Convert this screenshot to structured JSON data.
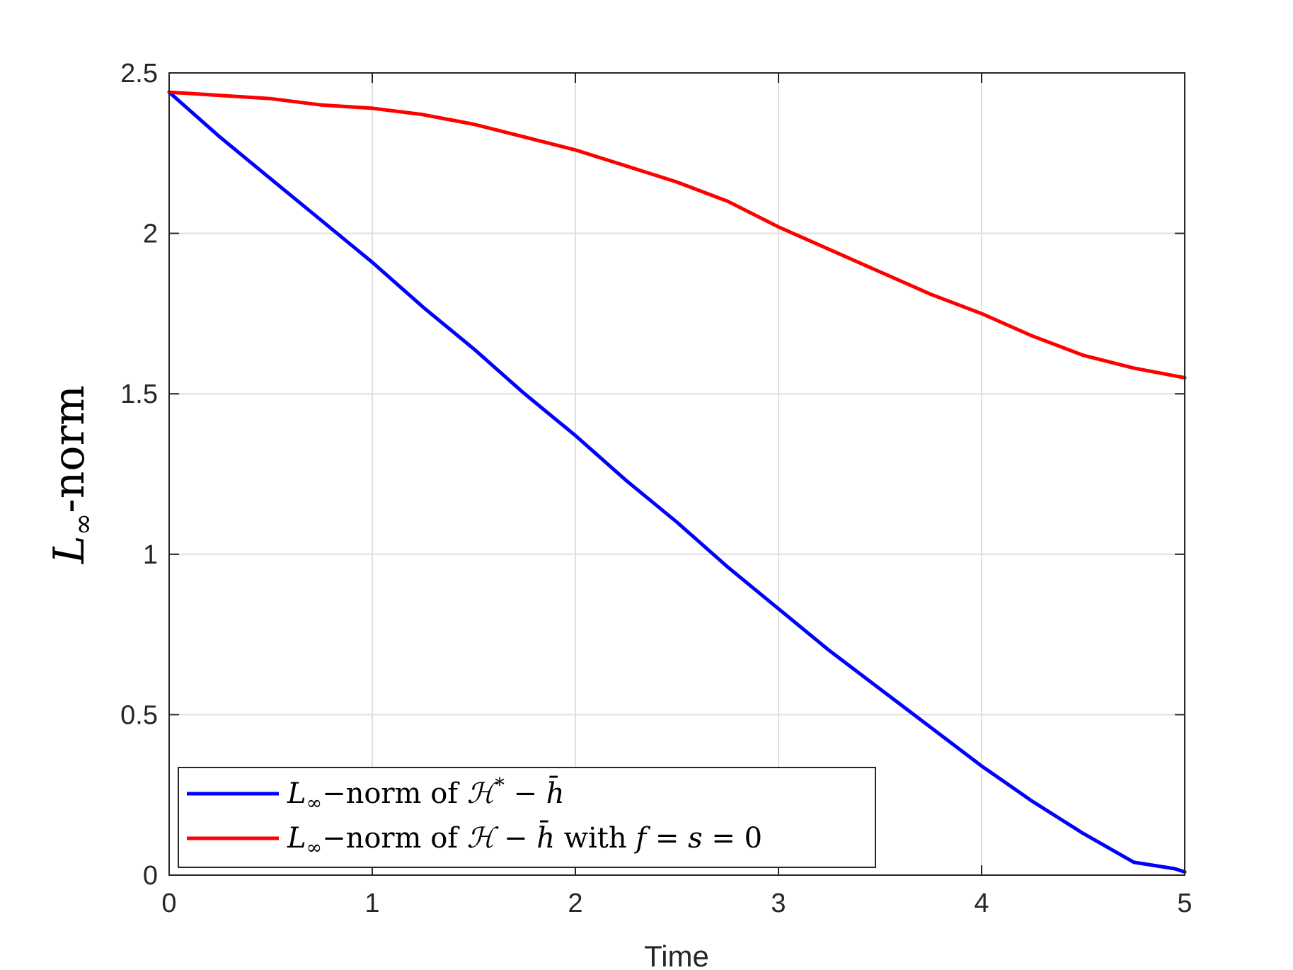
{
  "chart_data": {
    "type": "line",
    "xlabel": "Time",
    "ylabel": "L∞-norm",
    "xlim": [
      0,
      5
    ],
    "ylim": [
      0,
      2.5
    ],
    "xticks": [
      "0",
      "1",
      "2",
      "3",
      "4",
      "5"
    ],
    "yticks": [
      "0",
      "0.5",
      "1",
      "1.5",
      "2",
      "2.5"
    ],
    "grid": true,
    "legend_position": "bottom-left",
    "series": [
      {
        "name": "L∞−norm of ℋ* − h̄",
        "color": "#0000ff",
        "x": [
          0,
          0.25,
          0.5,
          0.75,
          1,
          1.25,
          1.5,
          1.75,
          2,
          2.25,
          2.5,
          2.75,
          3,
          3.25,
          3.5,
          3.75,
          4,
          4.25,
          4.5,
          4.75,
          4.95,
          5
        ],
        "y": [
          2.44,
          2.3,
          2.17,
          2.04,
          1.91,
          1.77,
          1.64,
          1.5,
          1.37,
          1.23,
          1.1,
          0.96,
          0.83,
          0.7,
          0.58,
          0.46,
          0.34,
          0.23,
          0.13,
          0.04,
          0.02,
          0.01
        ]
      },
      {
        "name": "L∞−norm of ℋ − h̄ with f = s = 0",
        "color": "#ff0000",
        "x": [
          0,
          0.25,
          0.5,
          0.75,
          1,
          1.25,
          1.5,
          1.75,
          2,
          2.25,
          2.5,
          2.75,
          3,
          3.25,
          3.5,
          3.75,
          4,
          4.25,
          4.5,
          4.75,
          5
        ],
        "y": [
          2.44,
          2.43,
          2.42,
          2.4,
          2.39,
          2.37,
          2.34,
          2.3,
          2.26,
          2.21,
          2.16,
          2.1,
          2.02,
          1.95,
          1.88,
          1.81,
          1.75,
          1.68,
          1.62,
          1.58,
          1.55
        ]
      }
    ],
    "legend": {
      "entry1": {
        "text_a": "L",
        "text_sub": "∞",
        "text_b": "−norm of ",
        "text_c": "ℋ",
        "text_sup": "*",
        "text_d": " − ",
        "text_e": "h̄"
      },
      "entry2": {
        "text_a": "L",
        "text_sub": "∞",
        "text_b": "−norm of ",
        "text_c": "ℋ",
        "text_d": " − ",
        "text_e": "h̄",
        "text_f": " with ",
        "text_g": "f",
        "text_h": " = ",
        "text_i": "s",
        "text_j": " = 0"
      }
    },
    "ylabel_parts": {
      "main": "L",
      "sub": "∞",
      "rest": "-norm"
    }
  }
}
